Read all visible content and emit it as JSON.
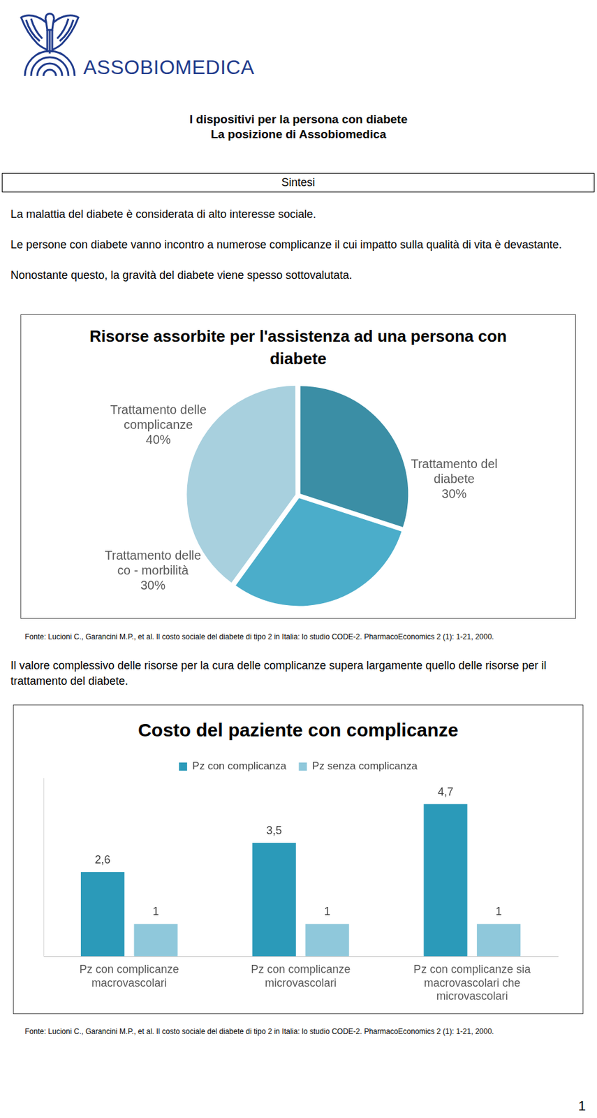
{
  "header": {
    "logo_text": "ASSOBIOMEDICA",
    "title_lines": [
      "I dispositivi per la persona con diabete",
      "La posizione di Assobiomedica"
    ]
  },
  "section_title": "Sintesi",
  "intro_paragraphs": [
    "La malattia del diabete è considerata di alto interesse sociale.",
    "Le persone con diabete vanno incontro a numerose complicanze il cui impatto sulla qualità di vita è devastante.",
    "Nonostante questo, la gravità del diabete viene spesso sottovalutata."
  ],
  "chart_data": [
    {
      "type": "pie",
      "title": "Risorse assorbite per l'assistenza ad una persona con diabete",
      "categories": [
        "Trattamento del diabete",
        "Trattamento delle co - morbilità",
        "Trattamento delle complicanze"
      ],
      "values": [
        30,
        30,
        40
      ],
      "value_labels": [
        "30%",
        "30%",
        "40%"
      ],
      "colors": [
        "#3b8ea5",
        "#4badca",
        "#a8d0de"
      ],
      "data_labels": true
    },
    {
      "type": "bar",
      "title": "Costo del paziente con complicanze",
      "categories": [
        "Pz con complicanze macrovascolari",
        "Pz con complicanze microvascolari",
        "Pz con complicanze sia macrovascolari che microvascolari"
      ],
      "series": [
        {
          "name": "Pz con complicanza",
          "color": "#2b9ab9",
          "values": [
            2.6,
            3.5,
            4.7
          ],
          "value_labels": [
            "2,6",
            "3,5",
            "4,7"
          ]
        },
        {
          "name": "Pz senza complicanza",
          "color": "#8fc8db",
          "values": [
            1,
            1,
            1
          ]
        }
      ],
      "ylim": [
        0,
        5.5
      ],
      "grid": false,
      "legend": "top",
      "data_labels": true,
      "tick_labels": "x"
    }
  ],
  "chart_sources": [
    "Fonte: Lucioni C., Garancini M.P., et al. Il costo sociale del diabete di tipo 2 in Italia: lo studio CODE-2. PharmacoEconomics 2 (1): 1-21, 2000.",
    "Fonte: Lucioni C., Garancini M.P., et al. Il costo sociale del diabete di tipo 2 in Italia: lo studio CODE-2. PharmacoEconomics 2 (1): 1-21, 2000."
  ],
  "text_between_charts": "Il valore complessivo delle risorse per la cura delle complicanze supera largamente quello delle risorse per il trattamento del diabete.",
  "page_number": 1
}
